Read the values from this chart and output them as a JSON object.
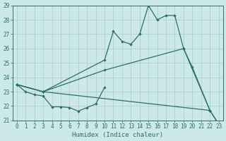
{
  "xlabel": "Humidex (Indice chaleur)",
  "xlim": [
    -0.5,
    23.5
  ],
  "ylim": [
    21,
    29
  ],
  "yticks": [
    21,
    22,
    23,
    24,
    25,
    26,
    27,
    28,
    29
  ],
  "xticks": [
    0,
    1,
    2,
    3,
    4,
    5,
    6,
    7,
    8,
    9,
    10,
    11,
    12,
    13,
    14,
    15,
    16,
    17,
    18,
    19,
    20,
    21,
    22,
    23
  ],
  "bg_color": "#cce8e8",
  "line_color": "#2a6e6e",
  "grid_color": "#aacece",
  "line1_x": [
    0,
    1,
    2,
    3,
    4,
    5,
    6,
    7,
    8,
    9,
    10,
    11,
    12,
    13,
    14,
    15,
    16,
    17,
    18,
    19,
    20,
    21,
    22,
    23
  ],
  "line1_y": [
    23.5,
    23.0,
    22.8,
    22.7,
    21.95,
    21.95,
    21.9,
    21.65,
    21.9,
    22.15,
    23.3,
    null,
    null,
    null,
    null,
    null,
    null,
    null,
    null,
    null,
    null,
    null,
    null,
    null
  ],
  "line2_x": [
    0,
    3,
    10,
    19,
    22
  ],
  "line2_y": [
    23.5,
    23.0,
    24.5,
    26.0,
    21.7
  ],
  "line3_x": [
    0,
    3,
    22,
    23
  ],
  "line3_y": [
    23.5,
    23.0,
    21.7,
    20.75
  ],
  "line4_x": [
    0,
    3,
    10,
    11,
    12,
    13,
    14,
    15,
    16,
    17,
    18,
    19,
    20,
    22,
    23
  ],
  "line4_y": [
    23.5,
    23.0,
    25.2,
    27.2,
    26.5,
    26.3,
    27.0,
    29.0,
    28.0,
    28.3,
    28.3,
    26.0,
    24.7,
    21.7,
    20.75
  ]
}
